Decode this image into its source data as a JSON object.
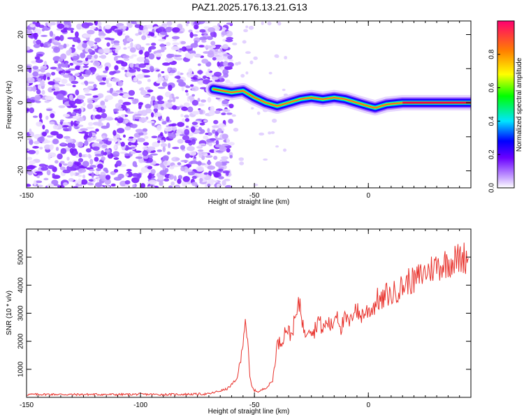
{
  "title": "PAZ1.2025.176.13.21.G13",
  "chart_data": [
    {
      "type": "heatmap",
      "xlabel": "Height of straight line (km)",
      "ylabel": "Frequency (Hz)",
      "xlim": [
        -150,
        45
      ],
      "ylim": [
        -25,
        24
      ],
      "xticks": [
        -150,
        -100,
        -50,
        0
      ],
      "yticks": [
        -20,
        -10,
        0,
        10,
        20
      ],
      "ridge": [
        {
          "x": -68,
          "y": 4
        },
        {
          "x": -60,
          "y": 3
        },
        {
          "x": -55,
          "y": 3.5
        },
        {
          "x": -50,
          "y": 1.5
        },
        {
          "x": -45,
          "y": 0
        },
        {
          "x": -40,
          "y": -1
        },
        {
          "x": -35,
          "y": 0
        },
        {
          "x": -30,
          "y": 1
        },
        {
          "x": -25,
          "y": 1.5
        },
        {
          "x": -20,
          "y": 1
        },
        {
          "x": -15,
          "y": 1.5
        },
        {
          "x": -10,
          "y": 1
        },
        {
          "x": -5,
          "y": 0
        },
        {
          "x": 0,
          "y": -1
        },
        {
          "x": 3,
          "y": -1.5
        },
        {
          "x": 8,
          "y": -0.5
        },
        {
          "x": 15,
          "y": 0
        },
        {
          "x": 25,
          "y": 0
        },
        {
          "x": 45,
          "y": 0
        }
      ],
      "noise_region_x": [
        -150,
        -60
      ],
      "colorbar": {
        "label": "Normalized spectral amplitude",
        "range": [
          0,
          1
        ],
        "ticks": [
          "0.0",
          "0.2",
          "0.4",
          "0.6",
          "0.8"
        ]
      }
    },
    {
      "type": "line",
      "xlabel": "Height of straight line (km)",
      "ylabel": "SNR (10 * v/v)",
      "xlim": [
        -150,
        45
      ],
      "ylim": [
        0,
        6000
      ],
      "xticks": [
        -150,
        -100,
        -50,
        0
      ],
      "yticks": [
        1000,
        2000,
        3000,
        4000,
        5000
      ],
      "color": "#e8302a",
      "series": [
        {
          "x": [
            -150,
            -140,
            -130,
            -120,
            -110,
            -100,
            -90,
            -80,
            -70,
            -62,
            -58,
            -56,
            -54,
            -53,
            -52,
            -51,
            -50,
            -48,
            -46,
            -44,
            -42,
            -40,
            -38,
            -36,
            -34,
            -32,
            -30,
            -28,
            -26,
            -24,
            -22,
            -20,
            -18,
            -16,
            -14,
            -12,
            -10,
            -8,
            -6,
            -4,
            -2,
            0,
            2,
            4,
            6,
            8,
            10,
            12,
            14,
            16,
            18,
            20,
            22,
            24,
            26,
            28,
            30,
            32,
            34,
            36,
            38,
            40,
            42,
            44
          ],
          "y": [
            100,
            110,
            100,
            105,
            100,
            110,
            100,
            110,
            120,
            300,
            600,
            1300,
            2850,
            2000,
            700,
            350,
            250,
            200,
            300,
            400,
            600,
            1900,
            2000,
            2500,
            2200,
            2800,
            3400,
            2200,
            2600,
            2300,
            2800,
            2400,
            2700,
            2500,
            3100,
            2500,
            2800,
            2600,
            3300,
            2900,
            3000,
            3100,
            3200,
            3500,
            3400,
            3700,
            3600,
            3800,
            3900,
            4000,
            4200,
            4100,
            4300,
            4400,
            4500,
            4600,
            4700,
            4700,
            4800,
            4850,
            4900,
            4950,
            5000,
            4950
          ]
        }
      ]
    }
  ]
}
